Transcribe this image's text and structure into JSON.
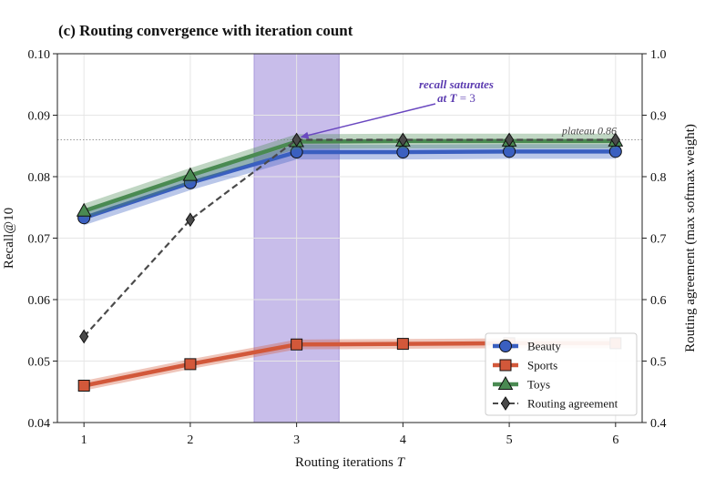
{
  "chart_data": {
    "type": "line",
    "title": "(c) Routing convergence with iteration count",
    "xlabel_prefix": "Routing iterations ",
    "xlabel_var": "T",
    "ylabel": "Recall@10",
    "y2label": "Routing agreement (max softmax weight)",
    "x": [
      1,
      2,
      3,
      4,
      5,
      6
    ],
    "xticks": [
      "1",
      "2",
      "3",
      "4",
      "5",
      "6"
    ],
    "xlim": [
      0.75,
      6.25
    ],
    "ylim": [
      0.04,
      0.1
    ],
    "yticks": [
      "0.04",
      "0.05",
      "0.06",
      "0.07",
      "0.08",
      "0.09",
      "0.10"
    ],
    "y2lim": [
      0.4,
      1.0
    ],
    "y2ticks": [
      "0.4",
      "0.5",
      "0.6",
      "0.7",
      "0.8",
      "0.9",
      "1.0"
    ],
    "grid": true,
    "legend_position": "lower-right",
    "series": [
      {
        "name": "Beauty",
        "axis": "left",
        "marker": "circle",
        "color": "#3a5fc0",
        "band": 0.0012,
        "values": [
          0.0733,
          0.079,
          0.084,
          0.084,
          0.0841,
          0.0841
        ]
      },
      {
        "name": "Sports",
        "axis": "left",
        "marker": "square",
        "color": "#d2583a",
        "band": 0.0008,
        "values": [
          0.046,
          0.0495,
          0.0527,
          0.0528,
          0.0529,
          0.0529
        ]
      },
      {
        "name": "Toys",
        "axis": "left",
        "marker": "triangle",
        "color": "#4a8a52",
        "band": 0.0012,
        "values": [
          0.0744,
          0.0802,
          0.0857,
          0.0858,
          0.0858,
          0.0858
        ]
      },
      {
        "name": "Routing agreement",
        "axis": "right",
        "marker": "diamond",
        "color": "#4a4a4a",
        "dashed": true,
        "values": [
          0.54,
          0.73,
          0.86,
          0.86,
          0.86,
          0.86
        ]
      }
    ],
    "highlight_span": {
      "x": [
        2.6,
        3.4
      ],
      "color": "#9b86d8"
    },
    "plateau_line": {
      "y2": 0.86
    },
    "annotations": {
      "plateau_label": "plateau 0.86",
      "saturation_line1": "recall saturates",
      "saturation_line2_prefix": "at ",
      "saturation_line2_var": "T",
      "saturation_line2_suffix": " = 3",
      "arrow_target": {
        "x": 3,
        "y2": 0.86
      }
    }
  }
}
